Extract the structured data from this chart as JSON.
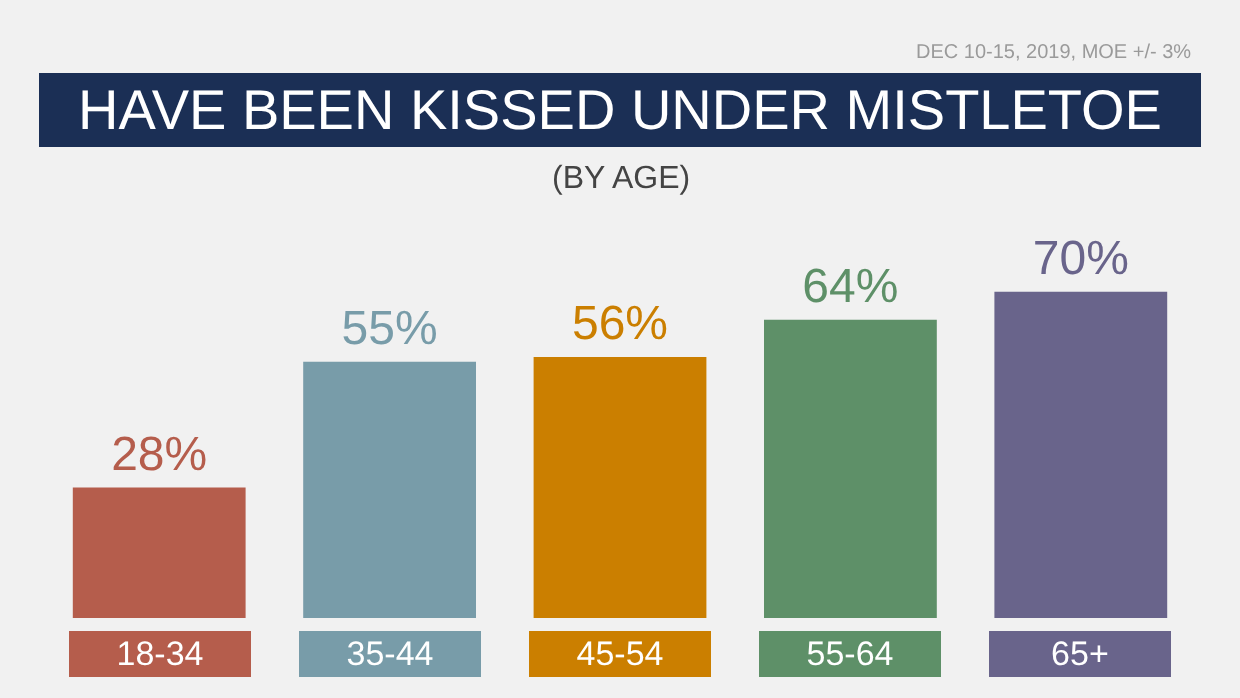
{
  "chart_data": {
    "type": "bar",
    "title": "HAVE BEEN KISSED UNDER MISTLETOE",
    "subtitle": "(BY AGE)",
    "annotations": [
      "DEC 10-15, 2019, MOE +/- 3%"
    ],
    "categories": [
      "18-34",
      "35-44",
      "45-54",
      "55-64",
      "65+"
    ],
    "values": [
      28,
      55,
      56,
      64,
      70
    ],
    "value_labels": [
      "28%",
      "55%",
      "56%",
      "64%",
      "70%"
    ],
    "colors": [
      "#b55d4c",
      "#789ca9",
      "#cb7f00",
      "#5e9068",
      "#69648b"
    ],
    "grid": false,
    "legend": false
  }
}
